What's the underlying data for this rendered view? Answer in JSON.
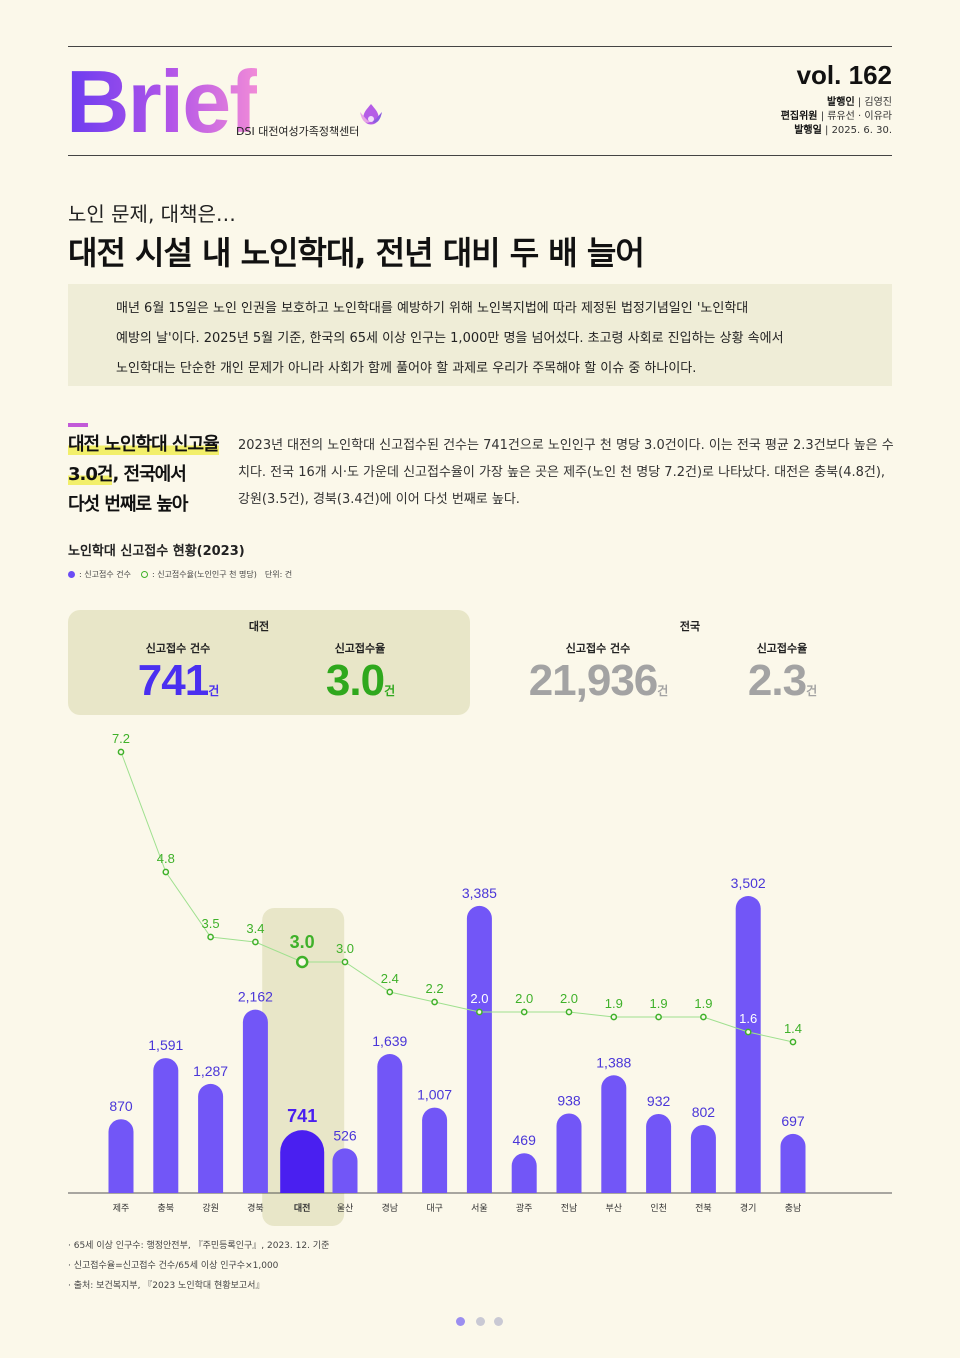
{
  "header": {
    "logo_text": "Brief",
    "org": "DSI 대전여성가족정책센터",
    "vol": "vol. 162",
    "publisher_label": "발행인",
    "publisher": "김영진",
    "editors_label": "편집위원",
    "editors": "류유선 · 이유라",
    "date_label": "발행일",
    "date": "2025. 6. 30."
  },
  "article": {
    "subhead": "노인 문제, 대책은…",
    "headline": "대전 시설 내 노인학대, 전년 대비 두 배 늘어",
    "lead": [
      "매년 6월 15일은 노인 인권을 보호하고 노인학대를 예방하기 위해 노인복지법에 따라 제정된 법정기념일인 '노인학대",
      "예방의 날'이다. 2025년 5월 기준, 한국의 65세 이상 인구는 1,000만 명을 넘어섰다. 초고령 사회로 진입하는 상황 속에서",
      "노인학대는 단순한 개인 문제가 아니라 사회가 함께 풀어야 할 과제로 우리가 주목해야 할 이슈 중 하나이다."
    ],
    "side_title_1a": "대전 노인학대 신고율",
    "side_title_2a": "3.0건",
    "side_title_2b": ", 전국에서",
    "side_title_3": "다섯 번째로 높아",
    "body": "2023년 대전의 노인학대 신고접수된 건수는 741건으로 노인인구 천 명당 3.0건이다. 이는 전국 평균 2.3건보다 높은 수치다. 전국 16개 시·도 가운데 신고접수율이 가장 높은 곳은 제주(노인 천 명당 7.2건)로 나타났다. 대전은 충북(4.8건), 강원(3.5건), 경북(3.4건)에 이어 다섯 번째로 높다."
  },
  "chart_data": {
    "type": "bar",
    "title": "노인학대 신고접수 현황(2023)",
    "legend": {
      "count": ": 신고접수 건수",
      "rate": ": 신고접수율(노인인구 천 명당)",
      "unit": "단위: 건"
    },
    "categories": [
      "제주",
      "충북",
      "강원",
      "경북",
      "대전",
      "울산",
      "경남",
      "대구",
      "서울",
      "광주",
      "전남",
      "부산",
      "인천",
      "전북",
      "경기",
      "충남"
    ],
    "series": [
      {
        "values": [
          870,
          1591,
          1287,
          2162,
          741,
          526,
          1639,
          1007,
          3385,
          469,
          938,
          1388,
          932,
          802,
          3502,
          697
        ]
      },
      {
        "values": [
          7.2,
          4.8,
          3.5,
          3.4,
          3.0,
          3.0,
          2.4,
          2.2,
          2.0,
          2.0,
          2.0,
          1.9,
          1.9,
          1.9,
          1.6,
          1.4
        ]
      }
    ],
    "count_labels": [
      "870",
      "1,591",
      "1,287",
      "2,162",
      "741",
      "526",
      "1,639",
      "1,007",
      "3,385",
      "469",
      "938",
      "1,388",
      "932",
      "802",
      "3,502",
      "697"
    ],
    "rate_labels": [
      "7.2",
      "4.8",
      "3.5",
      "3.4",
      "3.0",
      "3.0",
      "2.4",
      "2.2",
      "2.0",
      "2.0",
      "2.0",
      "1.9",
      "1.9",
      "1.9",
      "1.6",
      "1.4"
    ],
    "highlight": "대전",
    "colors": {
      "bar": "#7256f7",
      "highlight_bar": "#4a1ff0",
      "rate": "#3fb12a",
      "highlight_bg": "#e8e6c8"
    }
  },
  "kpi": {
    "daejeon": {
      "title": "대전",
      "count_label": "신고접수 건수",
      "count": "741",
      "rate_label": "신고접수율",
      "rate": "3.0",
      "unit": "건"
    },
    "national": {
      "title": "전국",
      "count_label": "신고접수 건수",
      "count": "21,936",
      "rate_label": "신고접수율",
      "rate": "2.3",
      "unit": "건"
    }
  },
  "footnotes": [
    "· 65세 이상 인구수: 행정안전부, 『주민등록인구』, 2023. 12. 기준",
    "· 신고접수율=신고접수 건수/65세 이상 인구수×1,000",
    "· 출처: 보건복지부, 『2023 노인학대 현황보고서』"
  ]
}
